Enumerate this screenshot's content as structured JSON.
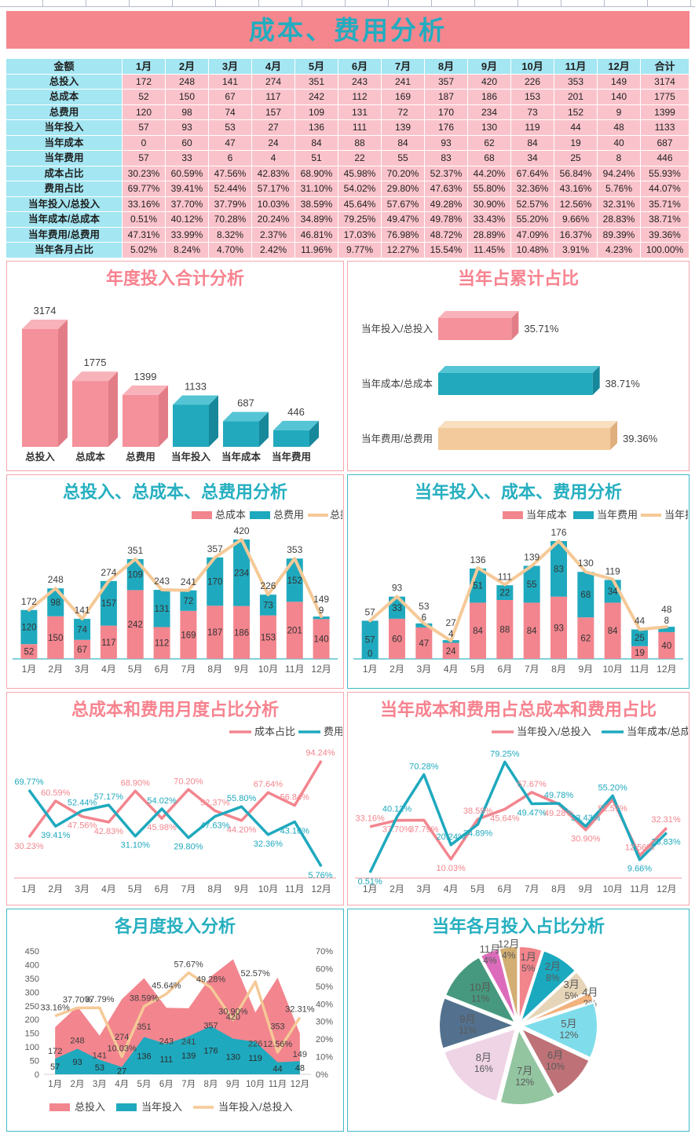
{
  "app": {
    "title": "成本、费用分析"
  },
  "colors": {
    "pink": "#F2858E",
    "teal": "#1FA9BE",
    "tan": "#F5C997",
    "title_bar_bg": "#F5868D",
    "title_bar_text": "#23ACBF",
    "table_header_bg": "#A4E6F2",
    "table_cell_bg": "#FAC3CB",
    "panel_border_pink": "#F5A6AD",
    "panel_border_teal": "#3FB9C9",
    "chart_title_pink": "#F7838F",
    "chart_title_teal": "#26AFC0"
  },
  "table": {
    "header": [
      "金额",
      "1月",
      "2月",
      "3月",
      "4月",
      "5月",
      "6月",
      "7月",
      "8月",
      "9月",
      "10月",
      "11月",
      "12月",
      "合计"
    ],
    "rows": [
      {
        "label": "总投入",
        "values": [
          "172",
          "248",
          "141",
          "274",
          "351",
          "243",
          "241",
          "357",
          "420",
          "226",
          "353",
          "149",
          "3174"
        ]
      },
      {
        "label": "总成本",
        "values": [
          "52",
          "150",
          "67",
          "117",
          "242",
          "112",
          "169",
          "187",
          "186",
          "153",
          "201",
          "140",
          "1775"
        ]
      },
      {
        "label": "总费用",
        "values": [
          "120",
          "98",
          "74",
          "157",
          "109",
          "131",
          "72",
          "170",
          "234",
          "73",
          "152",
          "9",
          "1399"
        ]
      },
      {
        "label": "当年投入",
        "values": [
          "57",
          "93",
          "53",
          "27",
          "136",
          "111",
          "139",
          "176",
          "130",
          "119",
          "44",
          "48",
          "1133"
        ]
      },
      {
        "label": "当年成本",
        "values": [
          "0",
          "60",
          "47",
          "24",
          "84",
          "88",
          "84",
          "93",
          "62",
          "84",
          "19",
          "40",
          "687"
        ]
      },
      {
        "label": "当年费用",
        "values": [
          "57",
          "33",
          "6",
          "4",
          "51",
          "22",
          "55",
          "83",
          "68",
          "34",
          "25",
          "8",
          "446"
        ]
      },
      {
        "label": "成本占比",
        "values": [
          "30.23%",
          "60.59%",
          "47.56%",
          "42.83%",
          "68.90%",
          "45.98%",
          "70.20%",
          "52.37%",
          "44.20%",
          "67.64%",
          "56.84%",
          "94.24%",
          "55.93%"
        ]
      },
      {
        "label": "费用占比",
        "values": [
          "69.77%",
          "39.41%",
          "52.44%",
          "57.17%",
          "31.10%",
          "54.02%",
          "29.80%",
          "47.63%",
          "55.80%",
          "32.36%",
          "43.16%",
          "5.76%",
          "44.07%"
        ]
      },
      {
        "label": "当年投入/总投入",
        "values": [
          "33.16%",
          "37.70%",
          "37.79%",
          "10.03%",
          "38.59%",
          "45.64%",
          "57.67%",
          "49.28%",
          "30.90%",
          "52.57%",
          "12.56%",
          "32.31%",
          "35.71%"
        ]
      },
      {
        "label": "当年成本/总成本",
        "values": [
          "0.51%",
          "40.12%",
          "70.28%",
          "20.24%",
          "34.89%",
          "79.25%",
          "49.47%",
          "49.78%",
          "33.43%",
          "55.20%",
          "9.66%",
          "28.83%",
          "38.71%"
        ]
      },
      {
        "label": "当年费用/总费用",
        "values": [
          "47.31%",
          "33.99%",
          "8.32%",
          "2.37%",
          "46.81%",
          "17.03%",
          "76.98%",
          "48.72%",
          "28.89%",
          "47.09%",
          "16.37%",
          "89.39%",
          "39.36%"
        ]
      },
      {
        "label": "当年各月占比",
        "values": [
          "5.02%",
          "8.24%",
          "4.70%",
          "2.42%",
          "11.96%",
          "9.77%",
          "12.27%",
          "15.54%",
          "11.45%",
          "10.48%",
          "3.91%",
          "4.23%",
          "100.00%"
        ]
      }
    ]
  },
  "chart_data": [
    {
      "type": "bar",
      "title": "年度投入合计分析",
      "categories": [
        "总投入",
        "总成本",
        "总费用",
        "当年投入",
        "当年成本",
        "当年费用"
      ],
      "values": [
        3174,
        1775,
        1399,
        1133,
        687,
        446
      ],
      "bar_colors": [
        "pink",
        "pink",
        "pink",
        "teal",
        "teal",
        "teal"
      ],
      "style": "3d-column"
    },
    {
      "type": "bar",
      "title": "当年占累计占比",
      "style": "3d-horizontal",
      "axis_min": 33,
      "axis_max": 40.2,
      "items": [
        {
          "label": "当年投入/总投入",
          "value": 35.71,
          "display": "35.71%",
          "color": "pink"
        },
        {
          "label": "当年成本/总成本",
          "value": 38.71,
          "display": "38.71%",
          "color": "teal"
        },
        {
          "label": "当年费用/总费用",
          "value": 39.36,
          "display": "39.36%",
          "color": "tan"
        }
      ]
    },
    {
      "type": "bar",
      "title": "总投入、总成本、总费用分析",
      "style": "stacked-bar-with-line",
      "categories": [
        "1月",
        "2月",
        "3月",
        "4月",
        "5月",
        "6月",
        "7月",
        "8月",
        "9月",
        "10月",
        "11月",
        "12月"
      ],
      "series": [
        {
          "name": "总成本",
          "color": "#F2858E",
          "values": [
            52,
            150,
            67,
            117,
            242,
            112,
            169,
            187,
            186,
            153,
            201,
            140
          ]
        },
        {
          "name": "总费用",
          "color": "#1FA9BE",
          "values": [
            120,
            98,
            74,
            157,
            109,
            131,
            72,
            170,
            234,
            73,
            152,
            9
          ]
        }
      ],
      "line": {
        "name": "总投入",
        "color": "#F5C997",
        "values": [
          172,
          248,
          141,
          274,
          351,
          243,
          241,
          357,
          420,
          226,
          353,
          149
        ]
      },
      "ylim": [
        0,
        420
      ]
    },
    {
      "type": "bar",
      "title": "当年投入、成本、费用分析",
      "style": "stacked-bar-with-line",
      "categories": [
        "1月",
        "2月",
        "3月",
        "4月",
        "5月",
        "6月",
        "7月",
        "8月",
        "9月",
        "10月",
        "11月",
        "12月"
      ],
      "series": [
        {
          "name": "当年成本",
          "color": "#F2858E",
          "values": [
            0,
            60,
            47,
            24,
            84,
            88,
            84,
            93,
            62,
            84,
            19,
            40
          ]
        },
        {
          "name": "当年费用",
          "color": "#1FA9BE",
          "values": [
            57,
            33,
            6,
            4,
            51,
            22,
            55,
            83,
            68,
            34,
            25,
            8
          ]
        }
      ],
      "line": {
        "name": "当年投入",
        "color": "#F5C997",
        "values": [
          57,
          93,
          53,
          27,
          136,
          111,
          139,
          176,
          130,
          119,
          44,
          48
        ]
      },
      "ylim": [
        0,
        176
      ]
    },
    {
      "type": "line",
      "title": "总成本和费用月度占比分析",
      "categories": [
        "1月",
        "2月",
        "3月",
        "4月",
        "5月",
        "6月",
        "7月",
        "8月",
        "9月",
        "10月",
        "11月",
        "12月"
      ],
      "ylim": [
        0,
        100
      ],
      "series": [
        {
          "name": "成本占比",
          "color": "#F2858E",
          "values": [
            30.23,
            60.59,
            47.56,
            42.83,
            68.9,
            45.98,
            70.2,
            52.37,
            44.2,
            67.64,
            56.84,
            94.24
          ],
          "labels": [
            "30.23%",
            "60.59%",
            "47.56%",
            "42.83%",
            "68.90%",
            "45.98%",
            "70.20%",
            "52.37%",
            "44.20%",
            "67.64%",
            "56.84%",
            "94.24%"
          ]
        },
        {
          "name": "费用占比",
          "color": "#1FA9BE",
          "values": [
            69.77,
            39.41,
            52.44,
            57.17,
            31.1,
            54.02,
            29.8,
            47.63,
            55.8,
            32.36,
            43.16,
            5.76
          ],
          "labels": [
            "69.77%",
            "39.41%",
            "52.44%",
            "57.17%",
            "31.10%",
            "54.02%",
            "29.80%",
            "47.63%",
            "55.80%",
            "32.36%",
            "43.16%",
            "5.76%"
          ]
        }
      ]
    },
    {
      "type": "line",
      "title": "当年成本和费用占总成本和费用占比",
      "categories": [
        "1月",
        "2月",
        "3月",
        "4月",
        "5月",
        "6月",
        "7月",
        "8月",
        "9月",
        "10月",
        "11月",
        "12月"
      ],
      "ylim": [
        0,
        85
      ],
      "series": [
        {
          "name": "当年投入/总投入",
          "color": "#F2858E",
          "values": [
            33.16,
            37.7,
            37.79,
            10.03,
            38.59,
            45.64,
            57.67,
            49.28,
            30.9,
            52.57,
            12.56,
            32.31
          ],
          "labels": [
            "33.16%",
            "37.70%",
            "37.79%",
            "10.03%",
            "38.59%",
            "45.64%",
            "57.67%",
            "49.28%",
            "30.90%",
            "52.57%",
            "12.56%",
            "32.31%"
          ]
        },
        {
          "name": "当年成本/总成本",
          "color": "#1FA9BE",
          "values": [
            0.51,
            40.12,
            70.28,
            20.24,
            34.89,
            79.25,
            49.47,
            49.78,
            33.43,
            55.2,
            9.66,
            28.83
          ],
          "labels": [
            "0.51%",
            "40.12%",
            "70.28%",
            "20.24%",
            "34.89%",
            "79.25%",
            "49.47%",
            "49.78%",
            "33.43%",
            "55.20%",
            "9.66%",
            "28.83%"
          ]
        }
      ]
    },
    {
      "type": "area",
      "title": "各月度投入分析",
      "categories": [
        "1月",
        "2月",
        "3月",
        "4月",
        "5月",
        "6月",
        "7月",
        "8月",
        "9月",
        "10月",
        "11月",
        "12月"
      ],
      "left_axis": {
        "min": 0,
        "max": 450,
        "step": 50
      },
      "right_axis": {
        "min": 0,
        "max": 70,
        "step": 10,
        "suffix": "%"
      },
      "series": [
        {
          "name": "总投入",
          "color": "#F2858E",
          "values": [
            172,
            248,
            141,
            274,
            351,
            243,
            241,
            357,
            420,
            226,
            353,
            149
          ]
        },
        {
          "name": "当年投入",
          "color": "#1FA9BE",
          "values": [
            57,
            93,
            53,
            27,
            136,
            111,
            139,
            176,
            130,
            119,
            44,
            48
          ]
        }
      ],
      "line": {
        "name": "当年投入/总投入",
        "color": "#F5C997",
        "values": [
          33.16,
          37.7,
          37.79,
          10.03,
          38.59,
          45.64,
          57.67,
          49.28,
          30.9,
          52.57,
          12.56,
          32.31
        ],
        "labels": [
          "33.16%",
          "37.70%",
          "37.79%",
          "10.03%",
          "38.59%",
          "45.64%",
          "57.67%",
          "49.28%",
          "30.90%",
          "52.57%",
          "12.56%",
          "32.31%"
        ]
      }
    },
    {
      "type": "pie",
      "title": "当年各月投入占比分析",
      "slices": [
        {
          "label": "1月",
          "pct": 5,
          "display": "5%",
          "color": "#F2848C"
        },
        {
          "label": "2月",
          "pct": 8,
          "display": "8%",
          "color": "#1BA9BF"
        },
        {
          "label": "3月",
          "pct": 5,
          "display": "5%",
          "color": "#E6D5B8"
        },
        {
          "label": "4月",
          "pct": 2,
          "display": "2%",
          "color": "#F2B27E"
        },
        {
          "label": "5月",
          "pct": 12,
          "display": "12%",
          "color": "#7FDDEB"
        },
        {
          "label": "6月",
          "pct": 10,
          "display": "10%",
          "color": "#BE7277"
        },
        {
          "label": "7月",
          "pct": 12,
          "display": "12%",
          "color": "#93C5A1"
        },
        {
          "label": "8月",
          "pct": 16,
          "display": "16%",
          "color": "#EFD4E6"
        },
        {
          "label": "9月",
          "pct": 11,
          "display": "11%",
          "color": "#53718E"
        },
        {
          "label": "10月",
          "pct": 11,
          "display": "11%",
          "color": "#46997E"
        },
        {
          "label": "11月",
          "pct": 4,
          "display": "4%",
          "color": "#DC6CBB"
        },
        {
          "label": "12月",
          "pct": 4,
          "display": "4%",
          "color": "#D2AE72"
        }
      ]
    }
  ]
}
